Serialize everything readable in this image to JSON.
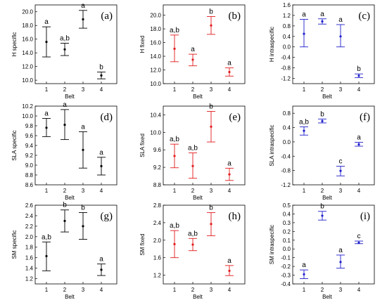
{
  "chart_data": [
    {
      "type": "errorbar",
      "panel_label": "(a)",
      "ylabel": "H specific",
      "xlabel": "Belt",
      "color": "#000000",
      "categories": [
        "1",
        "2",
        "3",
        "4"
      ],
      "ylim": [
        9.5,
        21.0
      ],
      "yticks": [
        10.0,
        12.0,
        14.0,
        16.0,
        18.0,
        20.0,
        22.0
      ],
      "points": [
        {
          "x": 1,
          "mean": 15.6,
          "lo": 13.4,
          "hi": 17.8,
          "sig": "a"
        },
        {
          "x": 2,
          "mean": 14.5,
          "lo": 13.6,
          "hi": 15.4,
          "sig": "a,b"
        },
        {
          "x": 3,
          "mean": 18.9,
          "lo": 17.6,
          "hi": 20.2,
          "sig": "a"
        },
        {
          "x": 4,
          "mean": 10.7,
          "lo": 10.2,
          "hi": 11.2,
          "sig": "b"
        }
      ]
    },
    {
      "type": "errorbar",
      "panel_label": "(b)",
      "ylabel": "H fixed",
      "xlabel": "Belt",
      "color": "#e31a1c",
      "categories": [
        "1",
        "2",
        "3",
        "4"
      ],
      "ylim": [
        10.0,
        21.5
      ],
      "yticks": [
        10.0,
        12.0,
        14.0,
        16.0,
        18.0,
        20.0,
        22.0
      ],
      "points": [
        {
          "x": 1,
          "mean": 15.1,
          "lo": 13.2,
          "hi": 17.1,
          "sig": "a,b"
        },
        {
          "x": 2,
          "mean": 13.5,
          "lo": 12.6,
          "hi": 14.3,
          "sig": "a"
        },
        {
          "x": 3,
          "mean": 18.5,
          "lo": 17.2,
          "hi": 19.8,
          "sig": "b"
        },
        {
          "x": 4,
          "mean": 11.7,
          "lo": 11.1,
          "hi": 12.3,
          "sig": "a"
        }
      ]
    },
    {
      "type": "errorbar",
      "panel_label": "(c)",
      "ylabel": "H intraspecific",
      "xlabel": "Belt",
      "color": "#1f1fcc",
      "categories": [
        "1",
        "2",
        "3",
        "4"
      ],
      "ylim": [
        -1.4,
        1.6
      ],
      "yticks": [
        -1.2,
        -0.8,
        -0.4,
        0.0,
        0.4,
        0.8,
        1.2,
        1.6
      ],
      "points": [
        {
          "x": 1,
          "mean": 0.5,
          "lo": 0.0,
          "hi": 1.05,
          "sig": "a"
        },
        {
          "x": 2,
          "mean": 0.97,
          "lo": 0.87,
          "hi": 1.07,
          "sig": "a"
        },
        {
          "x": 3,
          "mean": 0.4,
          "lo": 0.0,
          "hi": 0.85,
          "sig": "a"
        },
        {
          "x": 4,
          "mean": -1.1,
          "lo": -1.17,
          "hi": -1.03,
          "sig": "b"
        }
      ]
    },
    {
      "type": "errorbar",
      "panel_label": "(d)",
      "ylabel": "SLA specific",
      "xlabel": "Belt",
      "color": "#000000",
      "categories": [
        "1",
        "2",
        "3",
        "4"
      ],
      "ylim": [
        8.6,
        10.2
      ],
      "yticks": [
        8.6,
        8.8,
        9.0,
        9.2,
        9.4,
        9.6,
        9.8,
        10.0,
        10.2
      ],
      "points": [
        {
          "x": 1,
          "mean": 9.76,
          "lo": 9.58,
          "hi": 9.95,
          "sig": "a"
        },
        {
          "x": 2,
          "mean": 9.82,
          "lo": 9.52,
          "hi": 10.13,
          "sig": "a"
        },
        {
          "x": 3,
          "mean": 9.31,
          "lo": 8.94,
          "hi": 9.68,
          "sig": "a"
        },
        {
          "x": 4,
          "mean": 8.98,
          "lo": 8.8,
          "hi": 9.16,
          "sig": "a"
        }
      ]
    },
    {
      "type": "errorbar",
      "panel_label": "(e)",
      "ylabel": "SLA fixed",
      "xlabel": "Belt",
      "color": "#e31a1c",
      "categories": [
        "1",
        "2",
        "3",
        "4"
      ],
      "ylim": [
        8.8,
        10.6
      ],
      "yticks": [
        8.8,
        9.2,
        9.6,
        10.0,
        10.4,
        10.8
      ],
      "points": [
        {
          "x": 1,
          "mean": 9.46,
          "lo": 9.19,
          "hi": 9.73,
          "sig": "a,b"
        },
        {
          "x": 2,
          "mean": 9.23,
          "lo": 8.95,
          "hi": 9.53,
          "sig": "a,b"
        },
        {
          "x": 3,
          "mean": 10.13,
          "lo": 9.78,
          "hi": 10.48,
          "sig": "b"
        },
        {
          "x": 4,
          "mean": 9.04,
          "lo": 8.9,
          "hi": 9.18,
          "sig": "a"
        }
      ]
    },
    {
      "type": "errorbar",
      "panel_label": "(f)",
      "ylabel": "SLA intraspecific",
      "xlabel": "Belt",
      "color": "#1f1fcc",
      "categories": [
        "1",
        "2",
        "3",
        "4"
      ],
      "ylim": [
        -1.2,
        1.0
      ],
      "yticks": [
        -1.2,
        -0.8,
        -0.4,
        0.0,
        0.4,
        0.8
      ],
      "points": [
        {
          "x": 1,
          "mean": 0.31,
          "lo": 0.19,
          "hi": 0.42,
          "sig": "a,b"
        },
        {
          "x": 2,
          "mean": 0.58,
          "lo": 0.53,
          "hi": 0.64,
          "sig": "b"
        },
        {
          "x": 3,
          "mean": -0.81,
          "lo": -0.95,
          "hi": -0.68,
          "sig": "c"
        },
        {
          "x": 4,
          "mean": -0.07,
          "lo": -0.12,
          "hi": -0.01,
          "sig": "a"
        }
      ]
    },
    {
      "type": "errorbar",
      "panel_label": "(g)",
      "ylabel": "SM specific",
      "xlabel": "Belt",
      "color": "#000000",
      "categories": [
        "1",
        "2",
        "3",
        "4"
      ],
      "ylim": [
        1.1,
        2.6
      ],
      "yticks": [
        1.2,
        1.4,
        1.6,
        1.8,
        2.0,
        2.2,
        2.4,
        2.6
      ],
      "points": [
        {
          "x": 1,
          "mean": 1.63,
          "lo": 1.35,
          "hi": 1.9,
          "sig": "a,b"
        },
        {
          "x": 2,
          "mean": 2.3,
          "lo": 2.09,
          "hi": 2.51,
          "sig": "b"
        },
        {
          "x": 3,
          "mean": 2.2,
          "lo": 1.95,
          "hi": 2.46,
          "sig": "b"
        },
        {
          "x": 4,
          "mean": 1.37,
          "lo": 1.26,
          "hi": 1.48,
          "sig": "a"
        }
      ]
    },
    {
      "type": "errorbar",
      "panel_label": "(h)",
      "ylabel": "SM fixed",
      "xlabel": "Belt",
      "color": "#e31a1c",
      "categories": [
        "1",
        "2",
        "3",
        "4"
      ],
      "ylim": [
        1.0,
        2.8
      ],
      "yticks": [
        1.2,
        1.6,
        2.0,
        2.4,
        2.8
      ],
      "points": [
        {
          "x": 1,
          "mean": 1.91,
          "lo": 1.6,
          "hi": 2.22,
          "sig": "a,b"
        },
        {
          "x": 2,
          "mean": 1.9,
          "lo": 1.76,
          "hi": 2.04,
          "sig": "a,b"
        },
        {
          "x": 3,
          "mean": 2.37,
          "lo": 2.1,
          "hi": 2.63,
          "sig": "b"
        },
        {
          "x": 4,
          "mean": 1.3,
          "lo": 1.19,
          "hi": 1.42,
          "sig": "a"
        }
      ]
    },
    {
      "type": "errorbar",
      "panel_label": "(i)",
      "ylabel": "SM intraspecific",
      "xlabel": "Belt",
      "color": "#1f1fcc",
      "categories": [
        "1",
        "2",
        "3",
        "4"
      ],
      "ylim": [
        -0.4,
        0.5
      ],
      "yticks": [
        -0.4,
        -0.3,
        -0.2,
        -0.1,
        0.0,
        0.1,
        0.2,
        0.3,
        0.4,
        0.5
      ],
      "points": [
        {
          "x": 1,
          "mean": -0.29,
          "lo": -0.34,
          "hi": -0.24,
          "sig": "a"
        },
        {
          "x": 2,
          "mean": 0.38,
          "lo": 0.33,
          "hi": 0.43,
          "sig": "b"
        },
        {
          "x": 3,
          "mean": -0.15,
          "lo": -0.22,
          "hi": -0.07,
          "sig": "a"
        },
        {
          "x": 4,
          "mean": 0.07,
          "lo": 0.06,
          "hi": 0.09,
          "sig": "c"
        }
      ]
    }
  ]
}
